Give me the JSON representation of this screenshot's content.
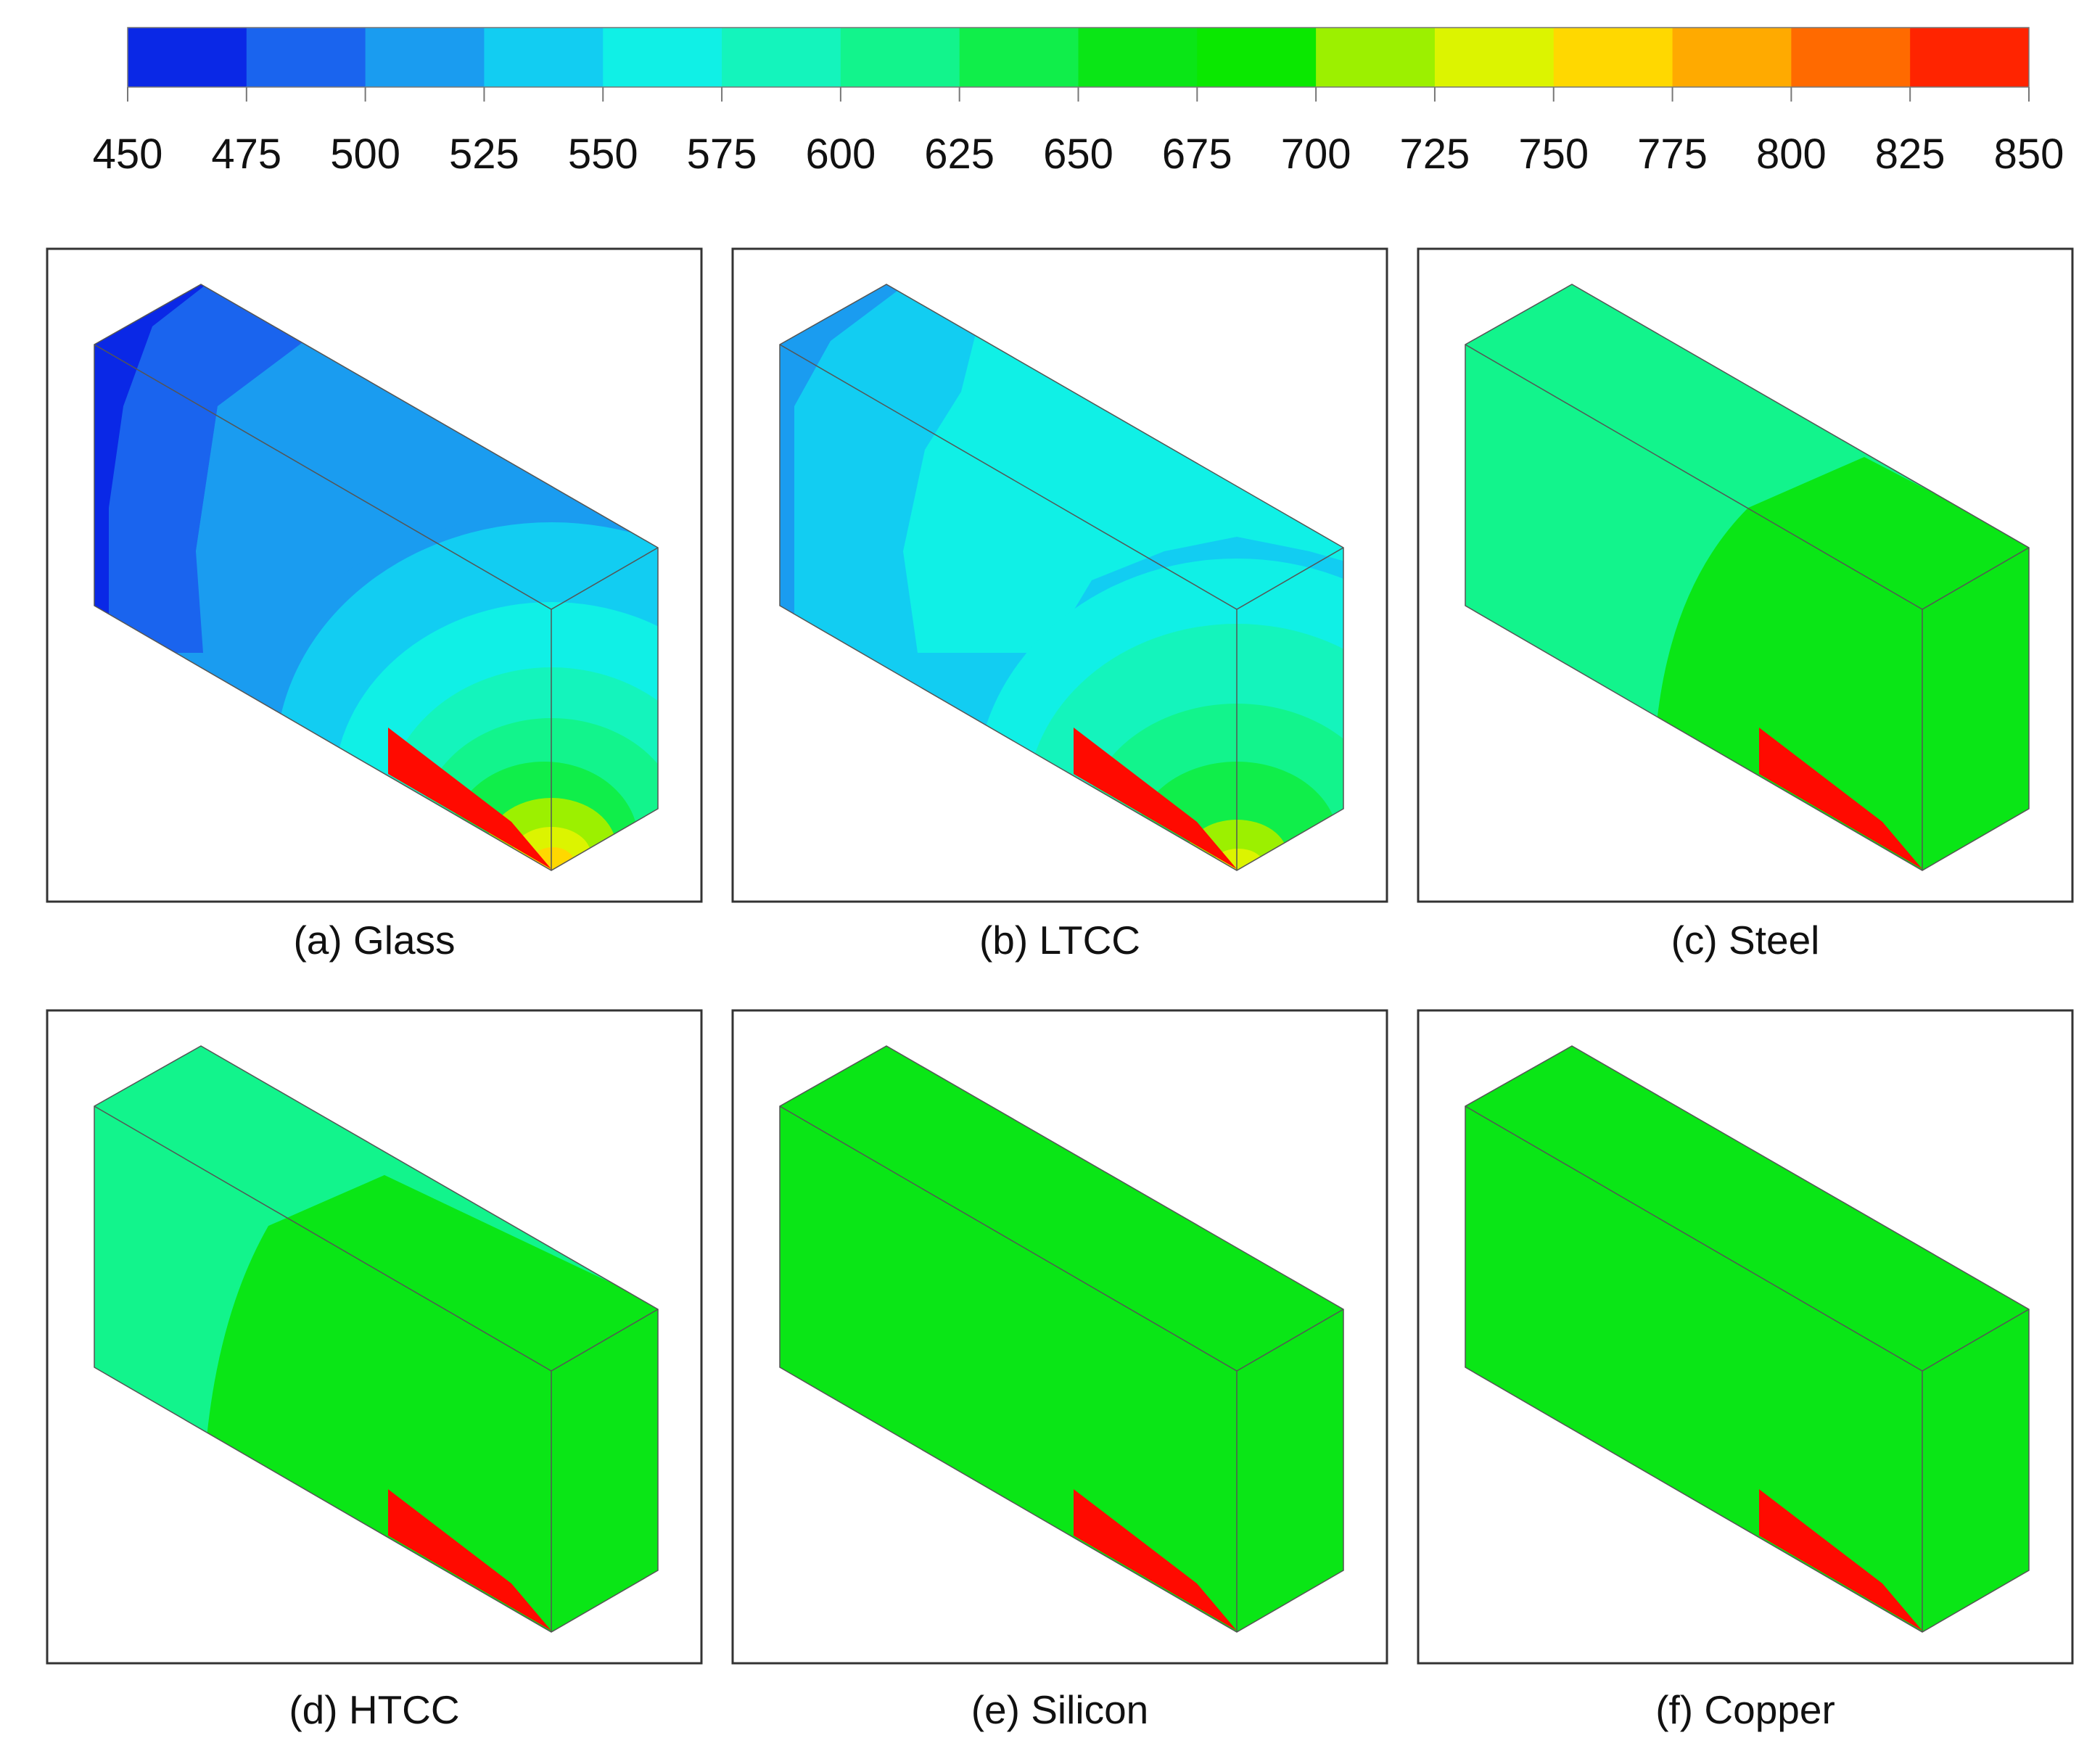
{
  "colorbar": {
    "ticks": [
      "450",
      "475",
      "500",
      "525",
      "550",
      "575",
      "600",
      "625",
      "650",
      "675",
      "700",
      "725",
      "750",
      "775",
      "800",
      "825",
      "850"
    ],
    "colors": [
      "#0a28e6",
      "#1a64ee",
      "#1a9cf0",
      "#12cdf2",
      "#10f0e6",
      "#14f4bc",
      "#12f48c",
      "#10ee4a",
      "#0ae616",
      "#0ae800",
      "#9cf000",
      "#dcf400",
      "#ffd800",
      "#ffaa00",
      "#ff6a00",
      "#ff2400"
    ]
  },
  "panels": [
    {
      "label": "(a) Glass",
      "material": "Glass"
    },
    {
      "label": "(b) LTCC",
      "material": "LTCC"
    },
    {
      "label": "(c) Steel",
      "material": "Steel"
    },
    {
      "label": "(d) HTCC",
      "material": "HTCC"
    },
    {
      "label": "(e) Silicon",
      "material": "Silicon"
    },
    {
      "label": "(f) Copper",
      "material": "Copper"
    }
  ],
  "colors": {
    "heater": "#ff0a00",
    "frame": "#333333"
  }
}
